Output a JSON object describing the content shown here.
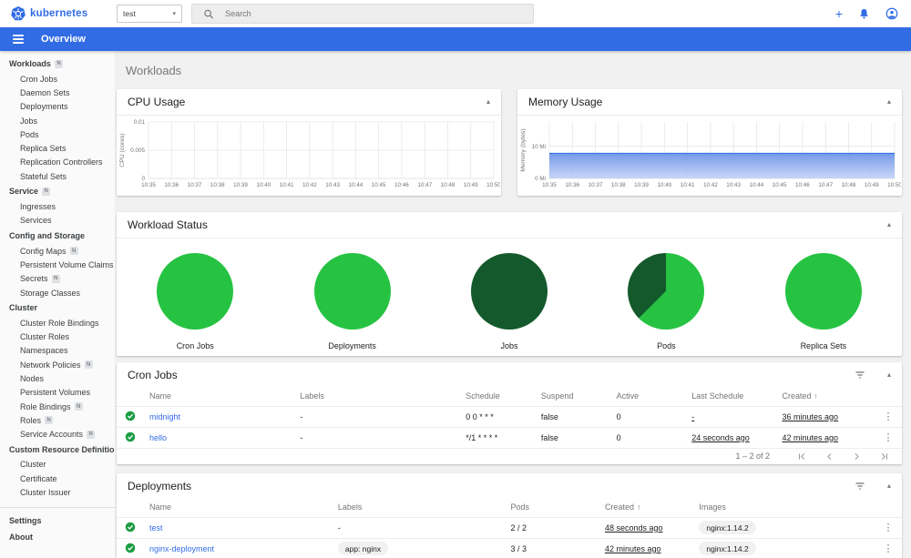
{
  "topbar": {
    "logo_text": "kubernetes",
    "namespace_select": {
      "value": "test"
    },
    "search": {
      "placeholder": "Search"
    }
  },
  "appbar": {
    "title": "Overview"
  },
  "icons": {
    "logo": "kubernetes-logo",
    "topbar": [
      "search-icon",
      "add-icon",
      "notifications-icon",
      "account-circle-icon"
    ],
    "appbar": "menu-icon",
    "card": [
      "filter-list-icon",
      "collapse-icon"
    ],
    "row": [
      "status-ok-icon",
      "kebab-menu-icon"
    ],
    "sort": "sort-ascending-icon",
    "pagination": [
      "first-page-icon",
      "prev-page-icon",
      "next-page-icon",
      "last-page-icon"
    ]
  },
  "sidebar": {
    "sections": [
      {
        "label": "Workloads",
        "badge": "N",
        "items": [
          {
            "label": "Cron Jobs"
          },
          {
            "label": "Daemon Sets"
          },
          {
            "label": "Deployments"
          },
          {
            "label": "Jobs"
          },
          {
            "label": "Pods"
          },
          {
            "label": "Replica Sets"
          },
          {
            "label": "Replication Controllers"
          },
          {
            "label": "Stateful Sets"
          }
        ]
      },
      {
        "label": "Service",
        "badge": "N",
        "items": [
          {
            "label": "Ingresses"
          },
          {
            "label": "Services"
          }
        ]
      },
      {
        "label": "Config and Storage",
        "items": [
          {
            "label": "Config Maps",
            "badge": "N"
          },
          {
            "label": "Persistent Volume Claims",
            "badge": "N"
          },
          {
            "label": "Secrets",
            "badge": "N"
          },
          {
            "label": "Storage Classes"
          }
        ]
      },
      {
        "label": "Cluster",
        "items": [
          {
            "label": "Cluster Role Bindings"
          },
          {
            "label": "Cluster Roles"
          },
          {
            "label": "Namespaces"
          },
          {
            "label": "Network Policies",
            "badge": "N"
          },
          {
            "label": "Nodes"
          },
          {
            "label": "Persistent Volumes"
          },
          {
            "label": "Role Bindings",
            "badge": "N"
          },
          {
            "label": "Roles",
            "badge": "N"
          },
          {
            "label": "Service Accounts",
            "badge": "N"
          }
        ]
      },
      {
        "label": "Custom Resource Definitions",
        "items": [
          {
            "label": "Cluster"
          },
          {
            "label": "Certificate"
          },
          {
            "label": "Cluster Issuer"
          }
        ]
      }
    ],
    "footer_items": [
      {
        "label": "Settings"
      },
      {
        "label": "About"
      }
    ]
  },
  "page": {
    "title": "Workloads"
  },
  "chart_data": [
    {
      "type": "line",
      "title": "CPU Usage",
      "xlabel": "",
      "ylabel": "CPU (cores)",
      "x": [
        "10:35",
        "10:36",
        "10:37",
        "10:38",
        "10:39",
        "10:40",
        "10:41",
        "10:42",
        "10:43",
        "10:44",
        "10:45",
        "10:46",
        "10:47",
        "10:48",
        "10:49",
        "10:50"
      ],
      "yticks": [
        0,
        0.005,
        0.01
      ],
      "ytick_labels": [
        "0",
        "0.005",
        "0.01"
      ],
      "ylim": [
        0,
        0.01
      ],
      "grid": true,
      "series": []
    },
    {
      "type": "area",
      "title": "Memory Usage",
      "xlabel": "",
      "ylabel": "Memory (bytes)",
      "x": [
        "10:35",
        "10:36",
        "10:37",
        "10:38",
        "10:39",
        "10:40",
        "10:41",
        "10:42",
        "10:43",
        "10:44",
        "10:45",
        "10:46",
        "10:47",
        "10:48",
        "10:49",
        "10:50"
      ],
      "yticks": [
        0,
        10
      ],
      "ytick_labels": [
        "0 Mi",
        "10 Mi"
      ],
      "ylim": [
        0,
        17.5
      ],
      "grid": true,
      "series": [
        {
          "name": "memory usage (Mi)",
          "values": [
            7.8,
            7.8,
            7.8,
            7.8,
            7.8,
            7.8,
            7.8,
            7.8,
            7.8,
            7.8,
            7.8,
            7.8,
            7.8,
            7.8,
            7.8,
            7.8
          ],
          "line_color": "#326ce5",
          "fill_top": "#6b93e8",
          "fill_bottom": "#b9ccf4"
        }
      ]
    },
    {
      "type": "pie",
      "title": "Workload Status",
      "colors": {
        "running_green": "#26c342",
        "succeeded_dark_green": "#14592b"
      },
      "pies": [
        {
          "label": "Cron Jobs",
          "segments": [
            {
              "name": "running",
              "fraction": 1,
              "color": "#26c342"
            }
          ]
        },
        {
          "label": "Deployments",
          "segments": [
            {
              "name": "running",
              "fraction": 1,
              "color": "#26c342"
            }
          ]
        },
        {
          "label": "Jobs",
          "segments": [
            {
              "name": "succeeded",
              "fraction": 1,
              "color": "#14592b"
            }
          ]
        },
        {
          "label": "Pods",
          "segments": [
            {
              "name": "running",
              "fraction": 0.625,
              "color": "#26c342"
            },
            {
              "name": "succeeded",
              "fraction": 0.375,
              "color": "#14592b"
            }
          ]
        },
        {
          "label": "Replica Sets",
          "segments": [
            {
              "name": "running",
              "fraction": 1,
              "color": "#26c342"
            }
          ]
        }
      ]
    }
  ],
  "tables": {
    "cron_jobs": {
      "title": "Cron Jobs",
      "columns": [
        {
          "label": "Name",
          "key": "name",
          "type": "link"
        },
        {
          "label": "Labels",
          "key": "labels",
          "type": "text"
        },
        {
          "label": "Schedule",
          "key": "schedule",
          "type": "text"
        },
        {
          "label": "Suspend",
          "key": "suspend",
          "type": "text"
        },
        {
          "label": "Active",
          "key": "active",
          "type": "text"
        },
        {
          "label": "Last Schedule",
          "key": "last_schedule",
          "type": "underline"
        },
        {
          "label": "Created",
          "key": "created",
          "type": "underline",
          "sorted": "asc"
        }
      ],
      "rows": [
        {
          "status": "ok",
          "name": "midnight",
          "labels": "-",
          "schedule": "0 0 * * *",
          "suspend": "false",
          "active": "0",
          "last_schedule": "-",
          "created": "36 minutes ago"
        },
        {
          "status": "ok",
          "name": "hello",
          "labels": "-",
          "schedule": "*/1 * * * *",
          "suspend": "false",
          "active": "0",
          "last_schedule": "24 seconds ago",
          "created": "42 minutes ago"
        }
      ],
      "pagination": {
        "range": "1 – 2 of 2"
      }
    },
    "deployments": {
      "title": "Deployments",
      "columns": [
        {
          "label": "Name",
          "key": "name",
          "type": "link"
        },
        {
          "label": "Labels",
          "key": "labels",
          "type": "chip-or-dash"
        },
        {
          "label": "Pods",
          "key": "pods",
          "type": "text"
        },
        {
          "label": "Created",
          "key": "created",
          "type": "underline",
          "sorted": "asc"
        },
        {
          "label": "Images",
          "key": "images",
          "type": "chip"
        }
      ],
      "rows": [
        {
          "status": "ok",
          "name": "test",
          "labels": "-",
          "pods": "2 / 2",
          "created": "48 seconds ago",
          "images": "nginx:1.14.2"
        },
        {
          "status": "ok",
          "name": "nginx-deployment",
          "labels": "app: nginx",
          "pods": "3 / 3",
          "created": "42 minutes ago",
          "images": "nginx:1.14.2"
        }
      ]
    }
  }
}
